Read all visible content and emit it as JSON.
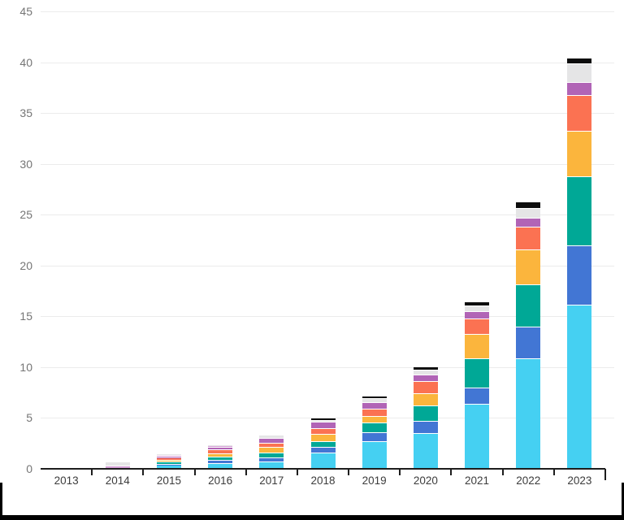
{
  "chart_data": {
    "type": "bar",
    "stacked": true,
    "title": "",
    "xlabel": "",
    "ylabel": "",
    "categories": [
      "2013",
      "2014",
      "2015",
      "2016",
      "2017",
      "2018",
      "2019",
      "2020",
      "2021",
      "2022",
      "2023"
    ],
    "series": [
      {
        "name": "cyan",
        "color": "#45d0f2",
        "values": [
          0,
          0.02,
          0.35,
          0.5,
          0.65,
          1.5,
          2.6,
          3.4,
          6.3,
          10.8,
          16.1
        ]
      },
      {
        "name": "blue",
        "color": "#4276d4",
        "values": [
          0,
          0,
          0.05,
          0.3,
          0.4,
          0.6,
          0.9,
          1.2,
          1.6,
          3.1,
          5.8
        ]
      },
      {
        "name": "teal",
        "color": "#00a896",
        "values": [
          0,
          0,
          0.2,
          0.3,
          0.45,
          0.55,
          0.95,
          1.55,
          2.9,
          4.2,
          6.8
        ]
      },
      {
        "name": "amber",
        "color": "#fbb53d",
        "values": [
          0,
          0,
          0.2,
          0.35,
          0.55,
          0.7,
          0.7,
          1.2,
          2.4,
          3.4,
          4.5
        ]
      },
      {
        "name": "orange-red",
        "color": "#fb7252",
        "values": [
          0,
          0,
          0.2,
          0.35,
          0.45,
          0.6,
          0.7,
          1.2,
          1.5,
          2.2,
          3.5
        ]
      },
      {
        "name": "purple",
        "color": "#b164b6",
        "values": [
          0,
          0,
          0.1,
          0.3,
          0.45,
          0.6,
          0.6,
          0.65,
          0.7,
          0.9,
          1.3
        ]
      },
      {
        "name": "pink",
        "color": "#d5a0d6",
        "values": [
          0,
          0.25,
          0.15,
          0.15,
          0,
          0,
          0,
          0,
          0,
          0,
          0
        ]
      },
      {
        "name": "light-gray",
        "color": "#e5e5e6",
        "values": [
          0,
          0.35,
          0.15,
          0.05,
          0.35,
          0.15,
          0.4,
          0.5,
          0.6,
          1.0,
          1.8
        ]
      },
      {
        "name": "black",
        "color": "#0d0d0d",
        "values": [
          0,
          0,
          0,
          0,
          0,
          0.25,
          0.25,
          0.3,
          0.4,
          0.6,
          0.6
        ]
      }
    ],
    "ylim": [
      0,
      45
    ],
    "yticks": [
      0,
      5,
      10,
      15,
      20,
      25,
      30,
      35,
      40,
      45
    ],
    "grid": true,
    "legend_position": "none"
  },
  "styles": {
    "background": "#ffffff",
    "grid_color": "#ececec",
    "axis_color": "#1d1d1d",
    "y_label_color": "#757575",
    "x_label_color": "#3c3c3c",
    "frame_color": "#000000"
  }
}
